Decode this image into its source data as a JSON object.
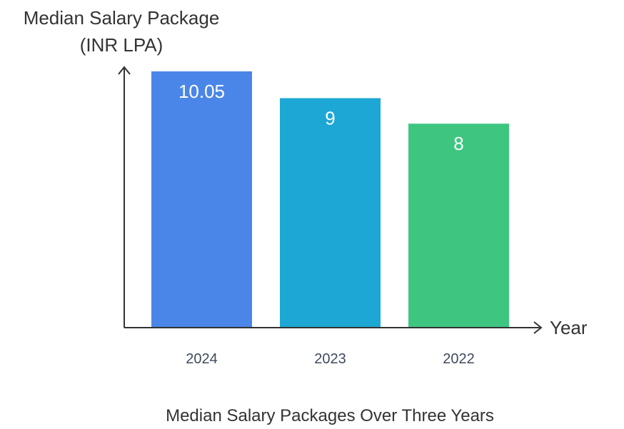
{
  "chart_data": {
    "type": "bar",
    "title": "Median Salary Packages Over Three Years",
    "ylabel_lines": [
      "Median Salary Package",
      "(INR LPA)"
    ],
    "xlabel": "Year",
    "categories": [
      "2024",
      "2023",
      "2022"
    ],
    "values": [
      10.05,
      9,
      8
    ],
    "value_labels": [
      "10.05",
      "9",
      "8"
    ],
    "colors": [
      "#4a86e8",
      "#1da7d5",
      "#3ec681"
    ],
    "ylim": [
      0,
      11
    ],
    "grid": false,
    "legend": "none"
  }
}
